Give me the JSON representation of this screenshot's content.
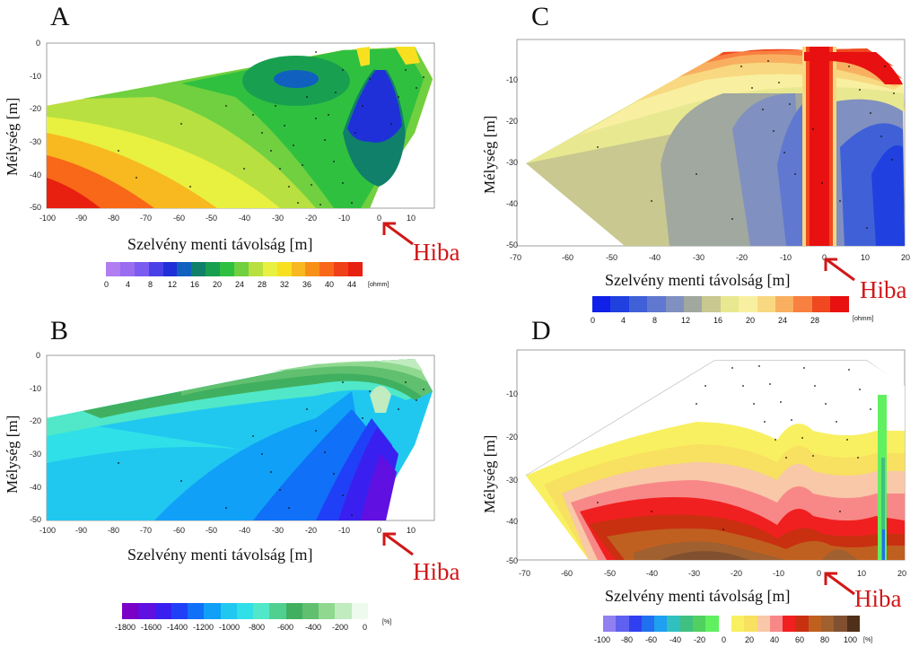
{
  "panels": {
    "a": {
      "letter": "A",
      "ylabel": "Mélység [m]",
      "xlabel": "Szelvény menti távolság [m]",
      "hiba": "Hiba",
      "yticks": [
        "0",
        "-10",
        "-20",
        "-30",
        "-40",
        "-50"
      ],
      "xticks": [
        "-100",
        "-90",
        "-80",
        "-70",
        "-60",
        "-50",
        "-40",
        "-30",
        "-20",
        "-10",
        "0",
        "10"
      ],
      "cbar_ticks": [
        "0",
        "4",
        "8",
        "12",
        "16",
        "20",
        "24",
        "28",
        "32",
        "36",
        "40",
        "44"
      ],
      "unit": "[ohmm]"
    },
    "b": {
      "letter": "B",
      "ylabel": "Mélység [m]",
      "xlabel": "Szelvény menti távolság [m]",
      "hiba": "Hiba",
      "yticks": [
        "0",
        "-10",
        "-20",
        "-30",
        "-40",
        "-50"
      ],
      "xticks": [
        "-100",
        "-90",
        "-80",
        "-70",
        "-60",
        "-50",
        "-40",
        "-30",
        "-20",
        "-10",
        "0",
        "10"
      ],
      "cbar_ticks": [
        "-1800",
        "-1600",
        "-1400",
        "-1200",
        "-1000",
        "-800",
        "-600",
        "-400",
        "-200",
        "0"
      ],
      "unit": "[%]"
    },
    "c": {
      "letter": "C",
      "ylabel": "Mélység [m]",
      "xlabel": "Szelvény menti távolság [m]",
      "hiba": "Hiba",
      "yticks": [
        "-10",
        "-20",
        "-30",
        "-40",
        "-50"
      ],
      "xticks": [
        "-70",
        "-60",
        "-50",
        "-40",
        "-30",
        "-20",
        "-10",
        "0",
        "10",
        "20"
      ],
      "cbar_ticks": [
        "0",
        "4",
        "8",
        "12",
        "16",
        "20",
        "24",
        "28"
      ],
      "unit": "[ohmm]"
    },
    "d": {
      "letter": "D",
      "ylabel": "Mélység [m]",
      "xlabel": "Szelvény menti távolság [m]",
      "hiba": "Hiba",
      "yticks": [
        "-10",
        "-20",
        "-30",
        "-40",
        "-50"
      ],
      "xticks": [
        "-70",
        "-60",
        "-50",
        "-40",
        "-30",
        "-20",
        "-10",
        "0",
        "10",
        "20"
      ],
      "cbar_ticks": [
        "-100",
        "-80",
        "-60",
        "-40",
        "-20",
        "0",
        "20",
        "40",
        "60",
        "80",
        "100"
      ],
      "unit": "[%]"
    }
  },
  "colors": {
    "hiba": "#d01818",
    "a_scale": [
      "#b07ef0",
      "#9a6cf0",
      "#7a5cf0",
      "#4a40e8",
      "#2030d8",
      "#1060c0",
      "#10806a",
      "#18a050",
      "#30c040",
      "#70d040",
      "#b8e040",
      "#e8f040",
      "#f8e020",
      "#f8b820",
      "#f89018",
      "#f86818",
      "#f04018",
      "#e82010"
    ],
    "b_scale": [
      "#7a00c8",
      "#6010e0",
      "#3a20f0",
      "#2040f8",
      "#1070f8",
      "#10a0f8",
      "#20c8f0",
      "#30e0e8",
      "#50e8c8",
      "#50d090",
      "#40b060",
      "#60c070",
      "#90d890",
      "#c0ecc0",
      "#eefaee"
    ],
    "c_scale": [
      "#1020e8",
      "#2040e0",
      "#4060d8",
      "#6078d0",
      "#8090c0",
      "#a0a8a0",
      "#c8c890",
      "#e8e890",
      "#f8f0a0",
      "#f8d880",
      "#f8b060",
      "#f88040",
      "#f04820",
      "#e81010"
    ],
    "d_scale": [
      "#9080f0",
      "#6060f0",
      "#3040f0",
      "#2070f0",
      "#20a0f0",
      "#30c0c0",
      "#40c080",
      "#50d060",
      "#60f060",
      "#ffffff",
      "#f8f060",
      "#f8e060",
      "#f8c8a8",
      "#f88888",
      "#f02020",
      "#c83010",
      "#c06020",
      "#a06030",
      "#805030",
      "#503018"
    ]
  }
}
